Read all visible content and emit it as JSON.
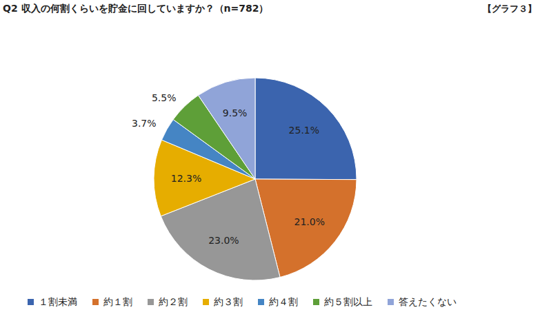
{
  "chart_data": {
    "type": "pie",
    "title": "Q2 収入の何割くらいを貯金に回していますか？（n=782）",
    "annotations": [
      "【グラフ３】"
    ],
    "categories": [
      "１割未満",
      "約１割",
      "約２割",
      "約３割",
      "約４割",
      "約５割以上",
      "答えたくない"
    ],
    "values": [
      25.1,
      21.0,
      23.0,
      12.3,
      3.7,
      5.5,
      9.5
    ],
    "value_labels": [
      "25.1%",
      "21.0%",
      "23.0%",
      "12.3%",
      "3.7%",
      "5.5%",
      "9.5%"
    ],
    "colors": [
      "#3b64ae",
      "#d4712c",
      "#979797",
      "#e6ad00",
      "#4585c4",
      "#5e9f38",
      "#90a4d8"
    ],
    "data_labels": true,
    "legend": "bottom"
  }
}
